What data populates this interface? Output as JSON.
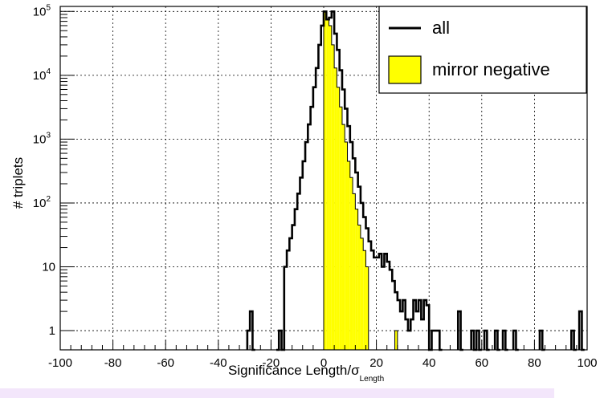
{
  "chart_data": {
    "type": "histogram",
    "xlabel_main": "Significance Length/σ",
    "xlabel_sub": "Length",
    "ylabel": "# triplets",
    "xlim": [
      -100,
      100
    ],
    "ylim": [
      0.5,
      120000
    ],
    "log_y": true,
    "grid": true,
    "legend_position": "top-right",
    "x_ticks": [
      "-100",
      "-80",
      "-60",
      "-40",
      "-20",
      "0",
      "20",
      "40",
      "60",
      "80",
      "100"
    ],
    "x_tick_values": [
      -100,
      -80,
      -60,
      -40,
      -20,
      0,
      20,
      40,
      60,
      80,
      100
    ],
    "y_ticks": [
      {
        "value": 1,
        "base": "1",
        "exp": ""
      },
      {
        "value": 10,
        "base": "10",
        "exp": ""
      },
      {
        "value": 100,
        "base": "10",
        "exp": "2"
      },
      {
        "value": 1000,
        "base": "10",
        "exp": "3"
      },
      {
        "value": 10000,
        "base": "10",
        "exp": "4"
      },
      {
        "value": 100000,
        "base": "10",
        "exp": "5"
      }
    ],
    "series": [
      {
        "name": "all",
        "style": "line",
        "color": "#000000",
        "points": [
          [
            -29,
            1
          ],
          [
            -28,
            2
          ],
          [
            -27,
            0
          ],
          [
            -18,
            0
          ],
          [
            -17,
            1
          ],
          [
            -16,
            0
          ],
          [
            -15,
            10
          ],
          [
            -14,
            18
          ],
          [
            -13,
            28
          ],
          [
            -12,
            45
          ],
          [
            -11,
            80
          ],
          [
            -10,
            140
          ],
          [
            -9,
            250
          ],
          [
            -8,
            450
          ],
          [
            -7,
            900
          ],
          [
            -6,
            1700
          ],
          [
            -5,
            3200
          ],
          [
            -4,
            6500
          ],
          [
            -3,
            13000
          ],
          [
            -2,
            30000
          ],
          [
            -1,
            60000
          ],
          [
            0,
            100000
          ],
          [
            1,
            75000
          ],
          [
            2,
            80000
          ],
          [
            3,
            100000
          ],
          [
            4,
            45000
          ],
          [
            5,
            25000
          ],
          [
            6,
            12000
          ],
          [
            7,
            6000
          ],
          [
            8,
            3000
          ],
          [
            9,
            1600
          ],
          [
            10,
            900
          ],
          [
            11,
            500
          ],
          [
            12,
            300
          ],
          [
            13,
            180
          ],
          [
            14,
            100
          ],
          [
            15,
            60
          ],
          [
            16,
            40
          ],
          [
            17,
            25
          ],
          [
            18,
            18
          ],
          [
            19,
            14
          ],
          [
            20,
            14
          ],
          [
            21,
            16
          ],
          [
            22,
            10
          ],
          [
            23,
            16
          ],
          [
            24,
            12
          ],
          [
            25,
            9
          ],
          [
            26,
            6
          ],
          [
            27,
            4
          ],
          [
            28,
            3
          ],
          [
            29,
            2
          ],
          [
            30,
            3
          ],
          [
            31,
            1.5
          ],
          [
            32,
            1
          ],
          [
            33,
            1.5
          ],
          [
            34,
            3
          ],
          [
            35,
            2
          ],
          [
            36,
            3
          ],
          [
            37,
            1.5
          ],
          [
            38,
            3
          ],
          [
            39,
            2.5
          ],
          [
            40,
            0
          ],
          [
            41,
            1
          ],
          [
            42,
            1
          ],
          [
            43,
            1
          ],
          [
            44,
            0
          ],
          [
            51,
            2
          ],
          [
            52,
            0
          ],
          [
            56,
            1
          ],
          [
            57,
            0
          ],
          [
            58,
            1
          ],
          [
            59,
            0
          ],
          [
            61,
            1
          ],
          [
            62,
            0
          ],
          [
            65,
            1
          ],
          [
            66,
            0
          ],
          [
            68,
            1
          ],
          [
            69,
            0
          ],
          [
            72,
            1
          ],
          [
            73,
            0
          ],
          [
            82,
            1
          ],
          [
            83,
            0
          ],
          [
            94,
            1
          ],
          [
            95,
            0
          ],
          [
            97,
            2
          ],
          [
            98,
            0
          ]
        ]
      },
      {
        "name": "mirror negative",
        "style": "fill",
        "color": "#ffff00",
        "points": [
          [
            0,
            100000
          ],
          [
            1,
            75000
          ],
          [
            2,
            60000
          ],
          [
            3,
            30000
          ],
          [
            4,
            13000
          ],
          [
            5,
            6500
          ],
          [
            6,
            3200
          ],
          [
            7,
            1700
          ],
          [
            8,
            900
          ],
          [
            9,
            450
          ],
          [
            10,
            250
          ],
          [
            11,
            140
          ],
          [
            12,
            80
          ],
          [
            13,
            45
          ],
          [
            14,
            28
          ],
          [
            15,
            18
          ],
          [
            16,
            10
          ],
          [
            17,
            0
          ],
          [
            27,
            1
          ],
          [
            28,
            0
          ]
        ]
      }
    ]
  }
}
